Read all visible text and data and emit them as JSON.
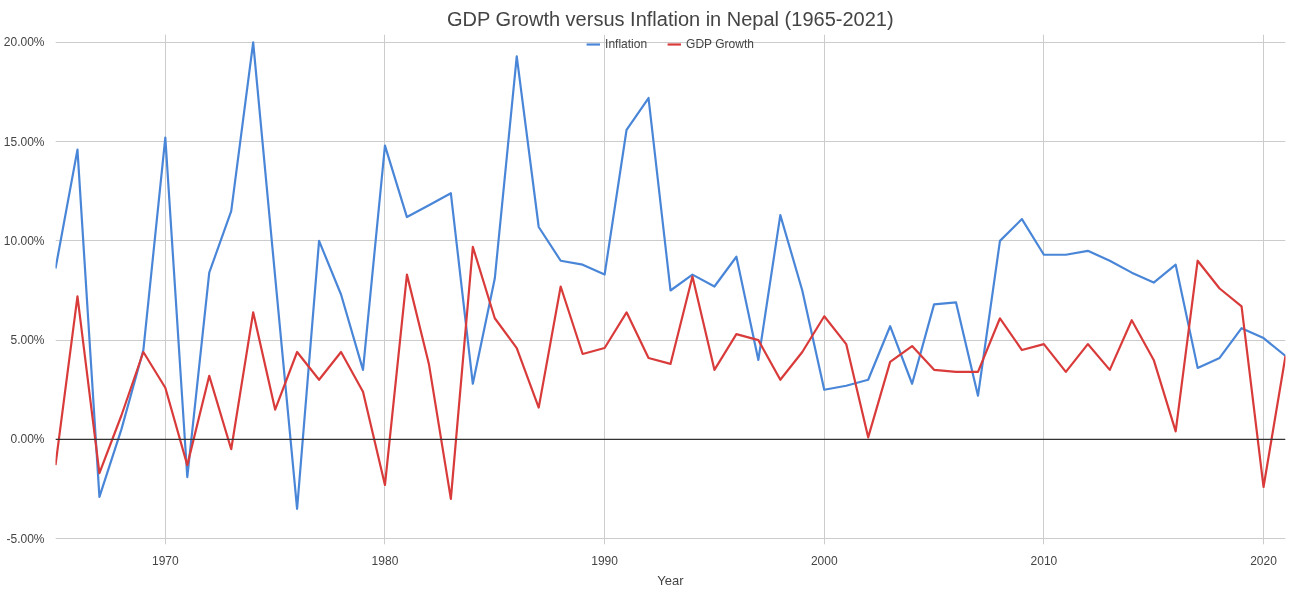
{
  "chart_data": {
    "type": "line",
    "title": "GDP Growth versus Inflation in Nepal (1965-2021)",
    "xlabel": "Year",
    "x": [
      1965,
      1966,
      1967,
      1968,
      1969,
      1970,
      1971,
      1972,
      1973,
      1974,
      1975,
      1976,
      1977,
      1978,
      1979,
      1980,
      1981,
      1982,
      1983,
      1984,
      1985,
      1986,
      1987,
      1988,
      1989,
      1990,
      1991,
      1992,
      1993,
      1994,
      1995,
      1996,
      1997,
      1998,
      1999,
      2000,
      2001,
      2002,
      2003,
      2004,
      2005,
      2006,
      2007,
      2008,
      2009,
      2010,
      2011,
      2012,
      2013,
      2014,
      2015,
      2016,
      2017,
      2018,
      2019,
      2020,
      2021
    ],
    "series": [
      {
        "name": "Inflation",
        "color": "#4a86d8",
        "values": [
          8.6,
          14.6,
          -2.9,
          0.5,
          4.5,
          15.2,
          -1.9,
          8.4,
          11.5,
          20.0,
          8.2,
          -3.5,
          10.0,
          7.3,
          3.5,
          14.8,
          11.2,
          11.8,
          12.4,
          2.8,
          8.1,
          19.3,
          10.7,
          9.0,
          8.8,
          8.3,
          15.6,
          17.2,
          7.5,
          8.3,
          7.7,
          9.2,
          4.0,
          11.3,
          7.5,
          2.5,
          2.7,
          3.0,
          5.7,
          2.8,
          6.8,
          6.9,
          2.2,
          10.0,
          11.1,
          9.3,
          9.3,
          9.5,
          9.0,
          8.4,
          7.9,
          8.8,
          3.6,
          4.1,
          5.6,
          5.1,
          4.2
        ]
      },
      {
        "name": "GDP Growth",
        "color": "#d93b3b",
        "values": [
          -1.3,
          7.2,
          -1.7,
          1.2,
          4.4,
          2.6,
          -1.3,
          3.2,
          -0.5,
          6.4,
          1.5,
          4.4,
          3.0,
          4.4,
          2.4,
          -2.3,
          8.3,
          3.8,
          -3.0,
          9.7,
          6.1,
          4.6,
          1.6,
          7.7,
          4.3,
          4.6,
          6.4,
          4.1,
          3.8,
          8.2,
          3.5,
          5.3,
          5.0,
          3.0,
          4.4,
          6.2,
          4.8,
          0.1,
          3.9,
          4.7,
          3.5,
          3.4,
          3.4,
          6.1,
          4.5,
          4.8,
          3.4,
          4.8,
          3.5,
          6.0,
          4.0,
          0.4,
          9.0,
          7.6,
          6.7,
          -2.4,
          4.2
        ]
      }
    ],
    "xlim": [
      1965,
      2021
    ],
    "xticks": [
      1970,
      1980,
      1990,
      2000,
      2010,
      2020
    ],
    "ylim": [
      -5.3,
      20.4
    ],
    "yticks": [
      {
        "value": -5,
        "label": "-5.00%"
      },
      {
        "value": 0,
        "label": "0.00%"
      },
      {
        "value": 5,
        "label": "5.00%"
      },
      {
        "value": 10,
        "label": "10.00%"
      },
      {
        "value": 15,
        "label": "15.00%"
      },
      {
        "value": 20,
        "label": "20.00%"
      }
    ],
    "ref_lines": [
      {
        "axis": "y",
        "value": 0,
        "color": "#333333"
      }
    ],
    "grid": true,
    "legend": "top",
    "line_style": "solid"
  }
}
